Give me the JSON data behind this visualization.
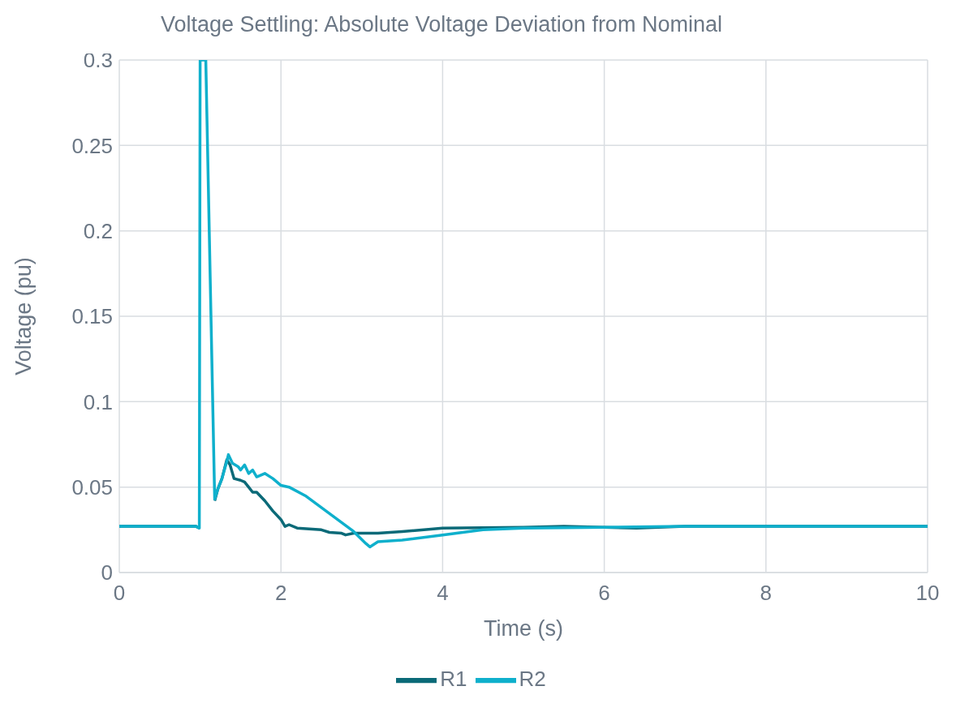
{
  "chart_data": {
    "type": "line",
    "title": "Voltage Settling: Absolute Voltage Deviation from Nominal",
    "xlabel": "Time (s)",
    "ylabel": "Voltage (pu)",
    "xlim": [
      0,
      10
    ],
    "xticks": [
      0,
      2,
      4,
      6,
      8,
      10
    ],
    "ylim": [
      0,
      0.3
    ],
    "yticks": [
      0,
      0.05,
      0.1,
      0.15,
      0.2,
      0.25,
      0.3
    ],
    "grid": true,
    "legend": "bottom",
    "marker": "none",
    "line_style": "solid",
    "series": [
      {
        "name": "R1",
        "color": "#0b6a78",
        "x": [
          0,
          0.95,
          0.99,
          1.0,
          1.07,
          1.18,
          1.22,
          1.27,
          1.33,
          1.37,
          1.42,
          1.5,
          1.55,
          1.6,
          1.65,
          1.7,
          1.8,
          1.9,
          2.0,
          2.05,
          2.1,
          2.2,
          2.5,
          2.6,
          2.75,
          2.8,
          2.9,
          3.2,
          3.5,
          4,
          5,
          5.5,
          6.4,
          7,
          10
        ],
        "values": [
          0.027,
          0.027,
          0.026,
          null,
          null,
          0.042,
          0.049,
          0.055,
          0.066,
          0.063,
          0.055,
          0.054,
          0.053,
          0.05,
          0.047,
          0.047,
          0.042,
          0.036,
          0.031,
          0.027,
          0.028,
          0.026,
          0.025,
          0.0235,
          0.023,
          0.022,
          0.023,
          0.023,
          0.024,
          0.026,
          0.0265,
          0.027,
          0.026,
          0.027,
          0.027
        ]
      },
      {
        "name": "R2",
        "color": "#0fb0cc",
        "x": [
          0,
          0.95,
          0.99,
          1.0,
          1.07,
          1.18,
          1.22,
          1.27,
          1.33,
          1.35,
          1.4,
          1.47,
          1.5,
          1.55,
          1.6,
          1.65,
          1.7,
          1.8,
          1.9,
          2.0,
          2.1,
          2.3,
          2.5,
          2.7,
          2.9,
          3.05,
          3.1,
          3.2,
          3.5,
          4.0,
          4.5,
          5,
          6,
          7,
          10
        ],
        "values": [
          0.027,
          0.027,
          0.026,
          0.3,
          0.3,
          0.043,
          0.049,
          0.055,
          0.065,
          0.069,
          0.064,
          0.062,
          0.06,
          0.063,
          0.058,
          0.06,
          0.056,
          0.058,
          0.055,
          0.051,
          0.05,
          0.045,
          0.038,
          0.031,
          0.024,
          0.017,
          0.015,
          0.018,
          0.019,
          0.022,
          0.025,
          0.026,
          0.0265,
          0.027,
          0.027
        ]
      }
    ]
  }
}
